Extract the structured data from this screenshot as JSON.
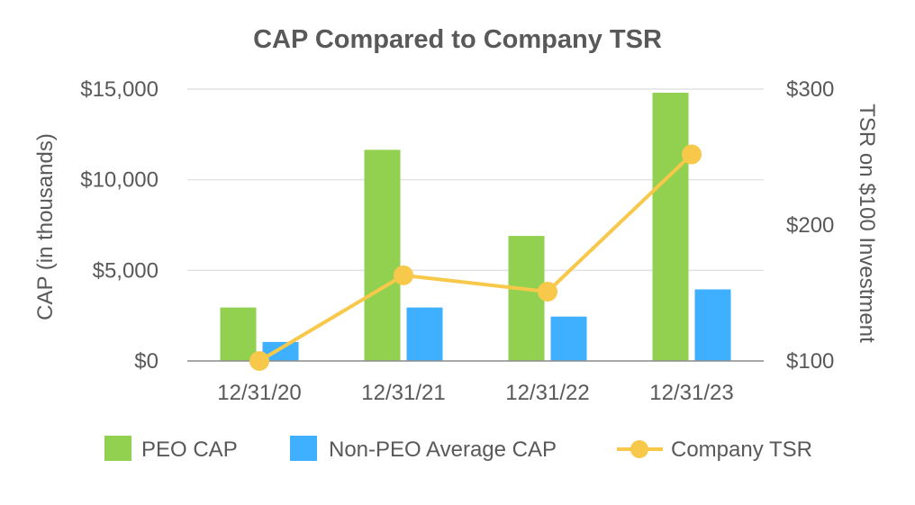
{
  "chart_data": {
    "type": "bar",
    "title": "CAP Compared to Company TSR",
    "categories": [
      "12/31/20",
      "12/31/21",
      "12/31/22",
      "12/31/23"
    ],
    "series": [
      {
        "name": "PEO CAP",
        "kind": "bar",
        "axis": "left",
        "color": "#92D050",
        "values": [
          2950,
          11650,
          6900,
          14800
        ]
      },
      {
        "name": "Non-PEO Average CAP",
        "kind": "bar",
        "axis": "left",
        "color": "#3FB0FF",
        "values": [
          1050,
          2950,
          2450,
          3950
        ]
      },
      {
        "name": "Company TSR",
        "kind": "line",
        "axis": "right",
        "color": "#F8C84A",
        "values": [
          100,
          163,
          151,
          252
        ]
      }
    ],
    "ylabel": "CAP (in thousands)",
    "y2label": "TSR on $100 Investment",
    "ylim": [
      0,
      15000
    ],
    "y2lim": [
      100,
      300
    ],
    "yticks": [
      {
        "value": 0,
        "label": "$0"
      },
      {
        "value": 5000,
        "label": "$5,000"
      },
      {
        "value": 10000,
        "label": "$10,000"
      },
      {
        "value": 15000,
        "label": "$15,000"
      }
    ],
    "y2ticks": [
      {
        "value": 100,
        "label": "$100"
      },
      {
        "value": 200,
        "label": "$200"
      },
      {
        "value": 300,
        "label": "$300"
      }
    ],
    "grid": true,
    "legend_position": "bottom"
  }
}
